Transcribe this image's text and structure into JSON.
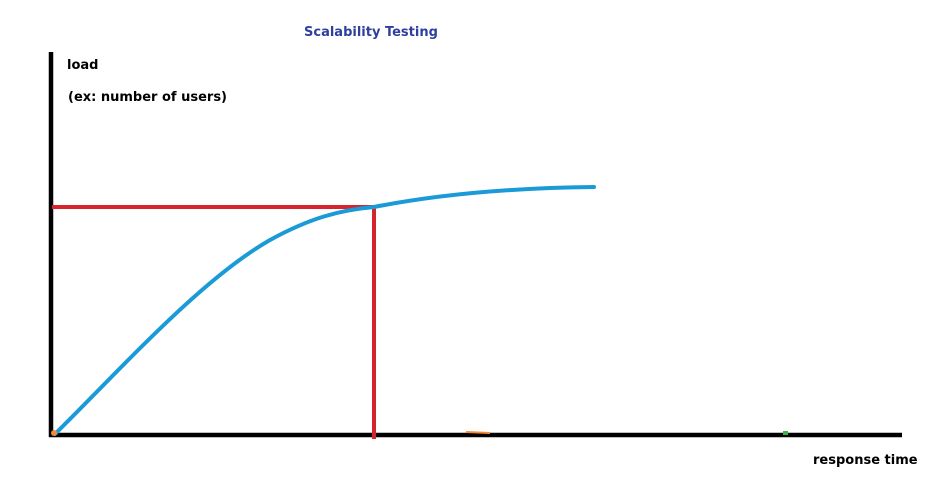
{
  "diagram": {
    "title": "Scalability Testing",
    "y_axis_label": "load",
    "y_axis_sublabel": "(ex: number of users)",
    "x_axis_label": "response time"
  },
  "colors": {
    "title": "#2e3f9e",
    "axes": "#000000",
    "curve": "#1a9ad6",
    "guide_lines": "#d7232b",
    "stray_mark_orange": "#f08a3a",
    "stray_mark_green": "#3cb34a"
  }
}
